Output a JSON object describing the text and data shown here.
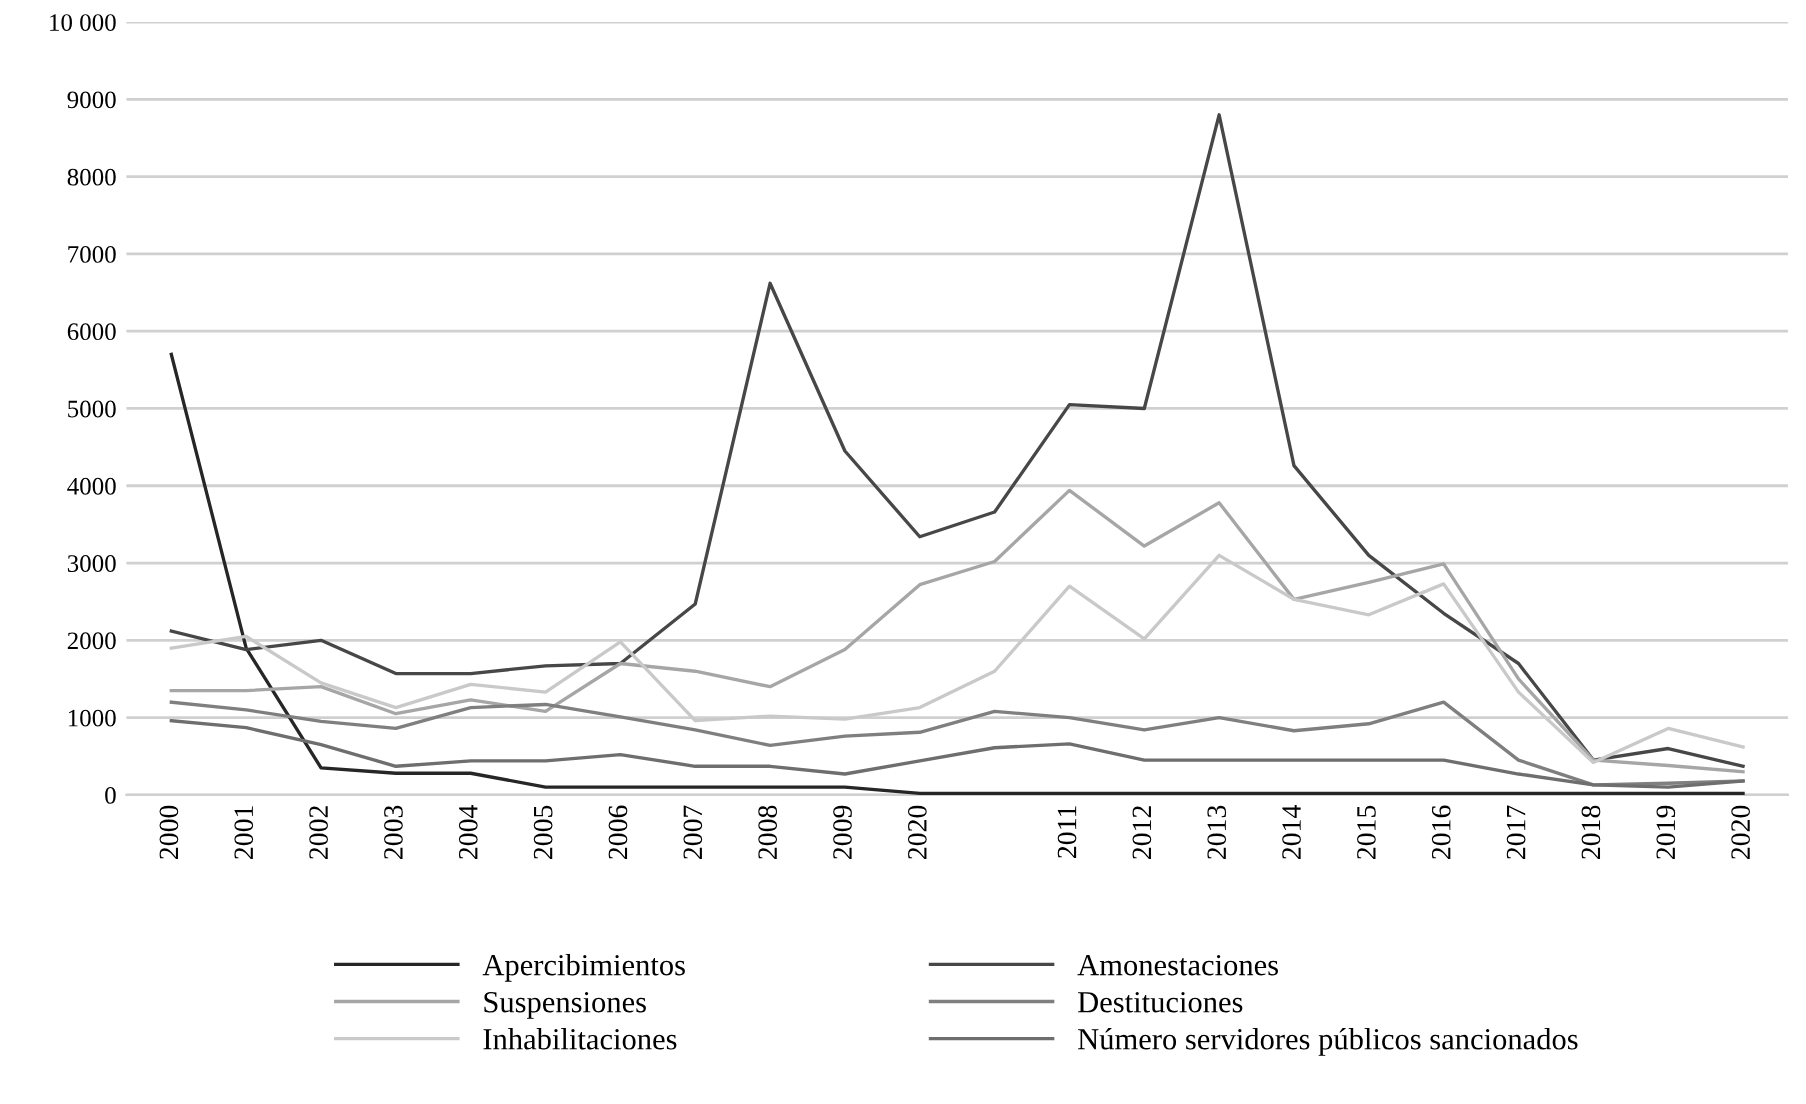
{
  "chart_data": {
    "type": "line",
    "categories": [
      "2000",
      "2001",
      "2002",
      "2003",
      "2004",
      "2005",
      "2006",
      "2007",
      "2008",
      "2009",
      "2020",
      null,
      "2011",
      "2012",
      "2013",
      "2014",
      "2015",
      "2016",
      "2017",
      "2018",
      "2019",
      "2020"
    ],
    "series": [
      {
        "name": "Apercibimientos",
        "color": "#262626",
        "values": [
          5700,
          1900,
          350,
          280,
          280,
          100,
          100,
          100,
          100,
          100,
          20,
          20,
          20,
          20,
          20,
          20,
          20,
          20,
          20,
          20,
          20,
          20
        ]
      },
      {
        "name": "Amonestaciones",
        "color": "#474747",
        "values": [
          2120,
          1880,
          2000,
          1570,
          1570,
          1670,
          1700,
          2470,
          6620,
          4450,
          3340,
          3660,
          5050,
          5000,
          8800,
          4260,
          3100,
          2350,
          1700,
          450,
          600,
          370
        ]
      },
      {
        "name": "Suspensiones",
        "color": "#a6a6a6",
        "values": [
          1350,
          1350,
          1400,
          1050,
          1230,
          1080,
          1700,
          1600,
          1400,
          1880,
          2720,
          3020,
          3940,
          3220,
          3780,
          2530,
          2750,
          2990,
          1500,
          450,
          380,
          300
        ]
      },
      {
        "name": "Destituciones",
        "color": "#7f7f7f",
        "values": [
          1200,
          1100,
          950,
          860,
          1130,
          1170,
          1010,
          840,
          640,
          760,
          810,
          1080,
          1000,
          840,
          1000,
          830,
          920,
          1200,
          450,
          130,
          150,
          180
        ]
      },
      {
        "name": "Inhabilitaciones",
        "color": "#c9c9c9",
        "values": [
          1900,
          2050,
          1450,
          1130,
          1430,
          1330,
          1980,
          960,
          1020,
          980,
          1130,
          1600,
          2700,
          2020,
          3100,
          2530,
          2330,
          2730,
          1330,
          420,
          860,
          620
        ]
      },
      {
        "name": "Número servidores públicos sancionados",
        "color": "#6e6e6e",
        "values": [
          960,
          870,
          650,
          370,
          440,
          440,
          520,
          370,
          370,
          270,
          440,
          610,
          660,
          450,
          450,
          450,
          450,
          450,
          270,
          130,
          100,
          180
        ]
      }
    ],
    "ylim": [
      0,
      10000
    ],
    "yticks": [
      0,
      1000,
      2000,
      3000,
      4000,
      5000,
      6000,
      7000,
      8000,
      9000,
      {
        "value": 10000,
        "label": "10 000"
      }
    ],
    "grid": "y",
    "legend": "bottom",
    "line_style": "solid",
    "marker": "none"
  }
}
